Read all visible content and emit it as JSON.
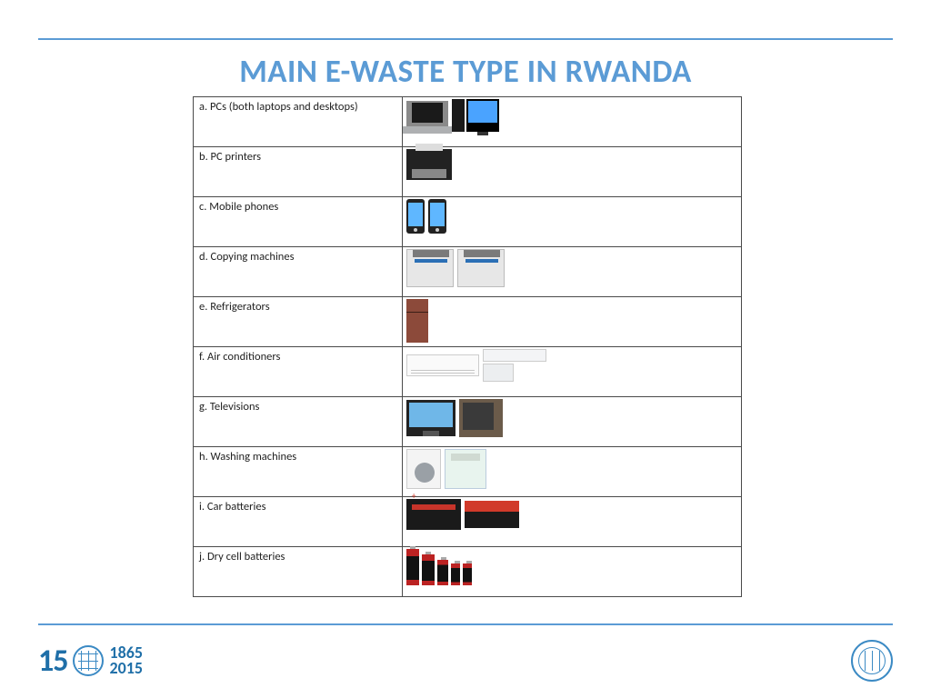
{
  "title": "MAIN E-WASTE TYPE IN RWANDA",
  "colors": {
    "accent": "#5b9bd5",
    "text": "#222222",
    "border": "#4a4a4a",
    "background": "#ffffff"
  },
  "table": {
    "rows": [
      {
        "label": "a. PCs (both laptops and desktops)",
        "images": [
          "laptop-icon",
          "desktop-icon"
        ]
      },
      {
        "label": "b. PC printers",
        "images": [
          "printer-icon"
        ]
      },
      {
        "label": "c. Mobile phones",
        "images": [
          "phone-icon",
          "phone-icon"
        ]
      },
      {
        "label": "d. Copying machines",
        "images": [
          "copier-icon",
          "copier-icon"
        ]
      },
      {
        "label": "e. Refrigerators",
        "images": [
          "fridge-icon"
        ]
      },
      {
        "label": "f. Air conditioners",
        "images": [
          "ac-wall-icon",
          "ac-split-icon"
        ]
      },
      {
        "label": "g. Televisions",
        "images": [
          "tv-flat-icon",
          "tv-crt-icon"
        ]
      },
      {
        "label": "h. Washing machines",
        "images": [
          "washer-front-icon",
          "washer-top-icon"
        ]
      },
      {
        "label": "i. Car batteries",
        "images": [
          "car-battery-icon",
          "car-battery-icon-2"
        ]
      },
      {
        "label": "j. Dry cell batteries",
        "images": [
          "dry-cells-icon"
        ]
      }
    ]
  },
  "footer": {
    "left_years_top": "1865",
    "left_years_bottom": "2015",
    "left_number": "15",
    "org": "ITU"
  }
}
